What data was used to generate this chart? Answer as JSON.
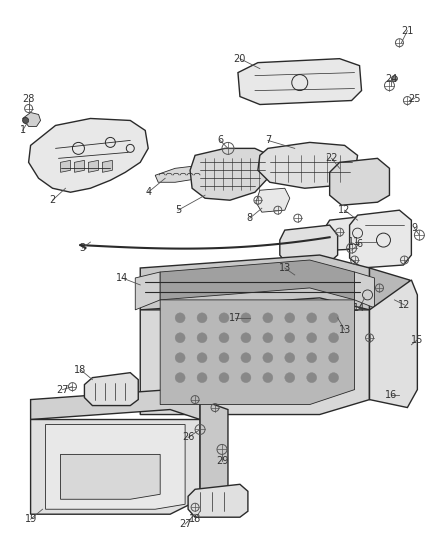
{
  "bg_color": "#ffffff",
  "line_color": "#2a2a2a",
  "label_color": "#3a3a3a",
  "figsize": [
    4.38,
    5.33
  ],
  "dpi": 100
}
